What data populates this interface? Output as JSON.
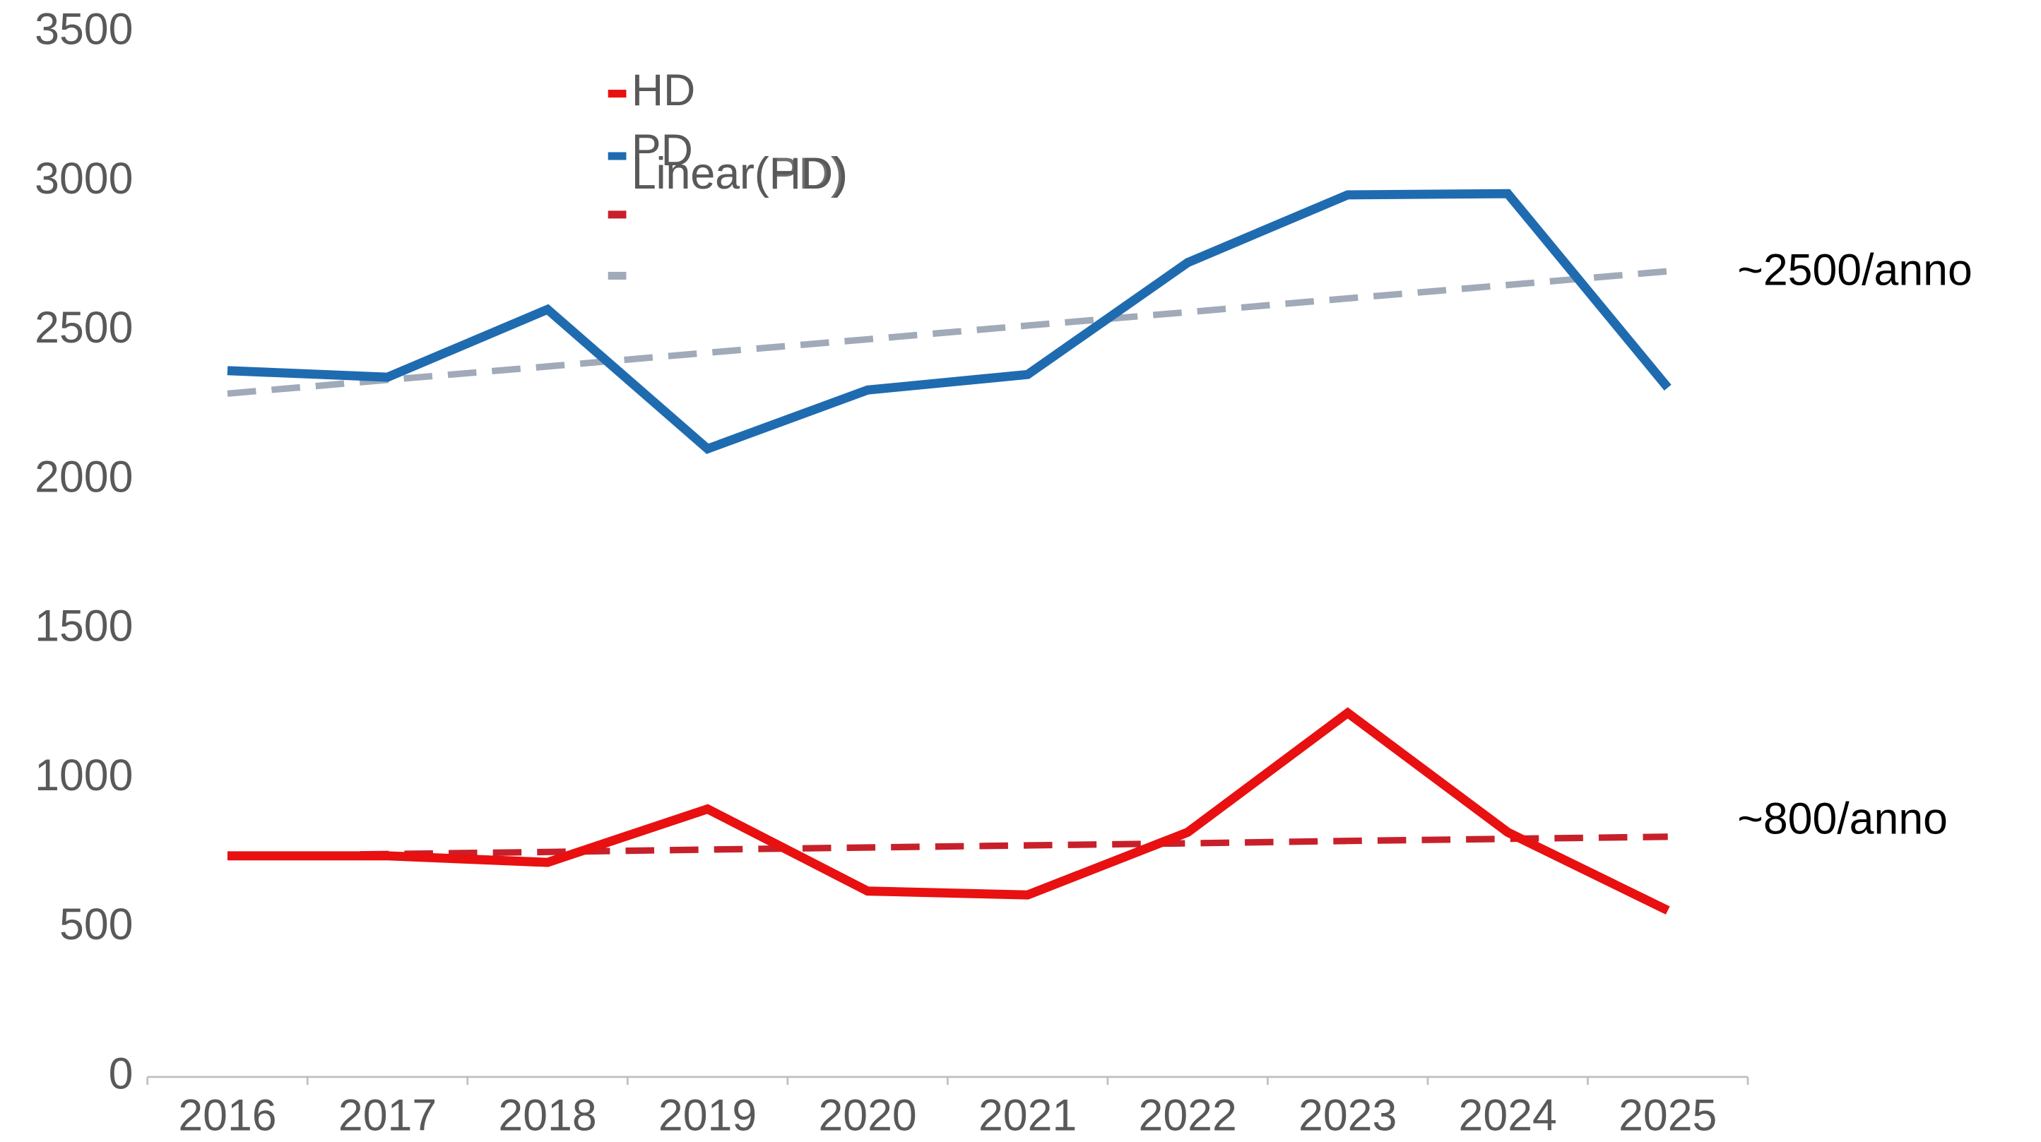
{
  "chart_data": {
    "type": "line",
    "categories": [
      "2016",
      "2017",
      "2018",
      "2019",
      "2020",
      "2021",
      "2022",
      "2023",
      "2024",
      "2025"
    ],
    "series": [
      {
        "name": "HD",
        "color": "#e81010",
        "values": [
          741,
          741,
          719,
          898,
          623,
          610,
          820,
          1220,
          820,
          558
        ]
      },
      {
        "name": "PD",
        "color": "#1f6bb0",
        "values": [
          2367,
          2345,
          2572,
          2105,
          2302,
          2354,
          2729,
          2956,
          2960,
          2310
        ]
      },
      {
        "name": "Linear(HD)",
        "color": "#c8202a",
        "dashed": true,
        "values": [
          740,
          747,
          754,
          762,
          769,
          776,
          783,
          791,
          798,
          805
        ]
      },
      {
        "name": "Linear(PD)",
        "color": "#a0aab8",
        "dashed": true,
        "values": [
          2290,
          2336,
          2381,
          2427,
          2472,
          2518,
          2563,
          2609,
          2654,
          2700
        ]
      }
    ],
    "ylim": [
      0,
      3500
    ],
    "yticks": [
      0,
      500,
      1000,
      1500,
      2000,
      2500,
      3000,
      3500
    ],
    "grid": false,
    "annotations": [
      "~2500/anno",
      "~800/anno"
    ]
  }
}
